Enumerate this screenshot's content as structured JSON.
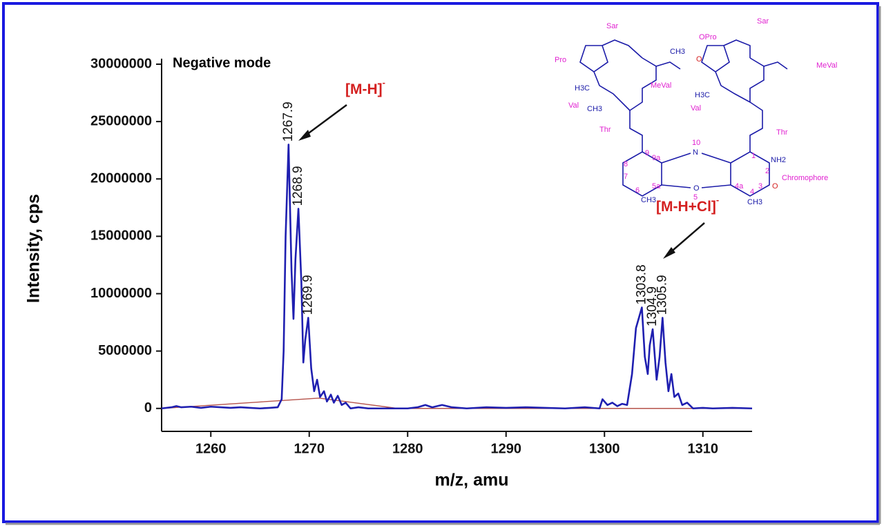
{
  "chart_data": {
    "type": "line",
    "xlabel": "m/z, amu",
    "ylabel": "Intensity, cps",
    "xlim": [
      1255,
      1315
    ],
    "ylim": [
      -2000000,
      30000000
    ],
    "xticks": [
      1260,
      1270,
      1280,
      1290,
      1300,
      1310
    ],
    "yticks": [
      0,
      5000000,
      10000000,
      15000000,
      20000000,
      25000000,
      30000000
    ],
    "series": [
      {
        "name": "spectrum",
        "color": "#1f1fb0",
        "x": [
          1255,
          1256,
          1256.5,
          1257,
          1258,
          1259,
          1260,
          1261,
          1262,
          1263,
          1264,
          1265,
          1266,
          1266.8,
          1267.2,
          1267.4,
          1267.6,
          1267.9,
          1268.2,
          1268.4,
          1268.6,
          1268.9,
          1269.2,
          1269.4,
          1269.6,
          1269.9,
          1270.2,
          1270.5,
          1270.8,
          1271.1,
          1271.5,
          1271.8,
          1272.2,
          1272.5,
          1272.9,
          1273.3,
          1273.7,
          1274.2,
          1275,
          1276,
          1278,
          1280,
          1281,
          1281.8,
          1282.5,
          1283.5,
          1284.5,
          1286,
          1288,
          1290,
          1292,
          1294,
          1296,
          1298,
          1299.5,
          1299.8,
          1300.3,
          1300.8,
          1301.3,
          1301.8,
          1302.3,
          1302.8,
          1303.2,
          1303.8,
          1304.1,
          1304.4,
          1304.6,
          1304.9,
          1305.3,
          1305.6,
          1305.9,
          1306.2,
          1306.5,
          1306.8,
          1307.1,
          1307.5,
          1307.9,
          1308.4,
          1309,
          1310,
          1311,
          1313,
          1315
        ],
        "values": [
          0,
          100000,
          200000,
          100000,
          150000,
          50000,
          150000,
          100000,
          50000,
          100000,
          50000,
          0,
          50000,
          100000,
          800000,
          5000000,
          15000000,
          23000000,
          12000000,
          7800000,
          13000000,
          17400000,
          11000000,
          4000000,
          6000000,
          7900000,
          3500000,
          1500000,
          2500000,
          1000000,
          1500000,
          600000,
          1200000,
          500000,
          1100000,
          300000,
          500000,
          0,
          100000,
          0,
          0,
          0,
          100000,
          300000,
          100000,
          300000,
          100000,
          0,
          100000,
          50000,
          100000,
          50000,
          0,
          100000,
          0,
          800000,
          300000,
          500000,
          200000,
          400000,
          300000,
          3000000,
          7000000,
          8800000,
          4500000,
          3000000,
          5500000,
          6900000,
          2500000,
          4500000,
          7900000,
          4000000,
          1500000,
          3000000,
          1000000,
          1300000,
          300000,
          500000,
          0,
          50000,
          0,
          50000,
          0
        ]
      },
      {
        "name": "baseline",
        "color": "#b5524a",
        "x": [
          1255,
          1271,
          1279,
          1315
        ],
        "values": [
          0,
          900000,
          0,
          0
        ]
      }
    ],
    "peaks": {
      "x": [
        1267.9,
        1268.9,
        1269.9,
        1303.8,
        1304.9,
        1305.9
      ],
      "values": [
        23000000,
        17400000,
        7900000,
        8800000,
        6900000,
        7900000
      ]
    },
    "annotations": {
      "mode": "Negative mode",
      "ion1": {
        "text": "[M-H]",
        "superscript": "-"
      },
      "ion2": {
        "text": "[M-H+Cl]",
        "superscript": "-"
      }
    }
  },
  "structure": {
    "residues": [
      "Sar",
      "Sar",
      "Pro",
      "OPro",
      "MeVal",
      "MeVal",
      "Val",
      "Val",
      "Thr",
      "Thr",
      "Chromophore"
    ],
    "atoms": [
      "N",
      "O",
      "NH2",
      "CH3",
      "CH3",
      "H3C",
      "CH3",
      "H3C",
      "CH3",
      "O",
      "O"
    ],
    "numbers": [
      "10",
      "5",
      "1",
      "2",
      "3",
      "4",
      "4a",
      "5a",
      "6",
      "7",
      "8",
      "9",
      "9a"
    ]
  }
}
